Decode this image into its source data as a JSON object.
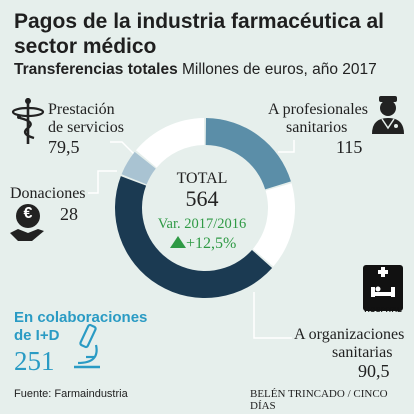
{
  "title": "Pagos de la industria farmacéutica al sector médico",
  "subtitle_bold": "Transferencias totales",
  "subtitle_rest": "Millones de euros, año 2017",
  "center": {
    "label": "TOTAL",
    "value": "564",
    "var_label": "Var. 2017/2016",
    "var_value": "+12,5%"
  },
  "chart_data": {
    "type": "pie",
    "unit": "Millones de euros",
    "total": 564,
    "slices": [
      {
        "label": "A profesionales sanitarios",
        "value": 115,
        "value_text": "115",
        "color": "#5b8ea8"
      },
      {
        "label": "A organizaciones sanitarias",
        "value": 90.5,
        "value_text": "90,5",
        "color": "#ffffff"
      },
      {
        "label": "En colaboraciones de I+D",
        "value": 251,
        "value_text": "251",
        "color": "#1b3a52"
      },
      {
        "label": "Donaciones",
        "value": 28,
        "value_text": "28",
        "color": "#a9c3d2"
      },
      {
        "label": "Prestación de servicios",
        "value": 79.5,
        "value_text": "79,5",
        "color": "#ffffff"
      }
    ]
  },
  "labels": {
    "servicios_1": "Prestación",
    "servicios_2": "de servicios",
    "profesionales_1": "A profesionales",
    "profesionales_2": "sanitarios",
    "donaciones": "Donaciones",
    "organizaciones_1": "A organizaciones",
    "organizaciones_2": "sanitarias",
    "id_1": "En colaboraciones",
    "id_2": "de I+D"
  },
  "icons": {
    "hospital_text": "HOSPITAL",
    "euro_symbol": "€"
  },
  "colors": {
    "background": "#e6efec",
    "accent_id": "#2a9bc4",
    "up_arrow": "#2f9a45",
    "leader_lines": "#ffffff"
  },
  "footer": {
    "source": "Fuente: Farmaindustria",
    "credit": "BELÉN TRINCADO / CINCO DÍAS"
  }
}
